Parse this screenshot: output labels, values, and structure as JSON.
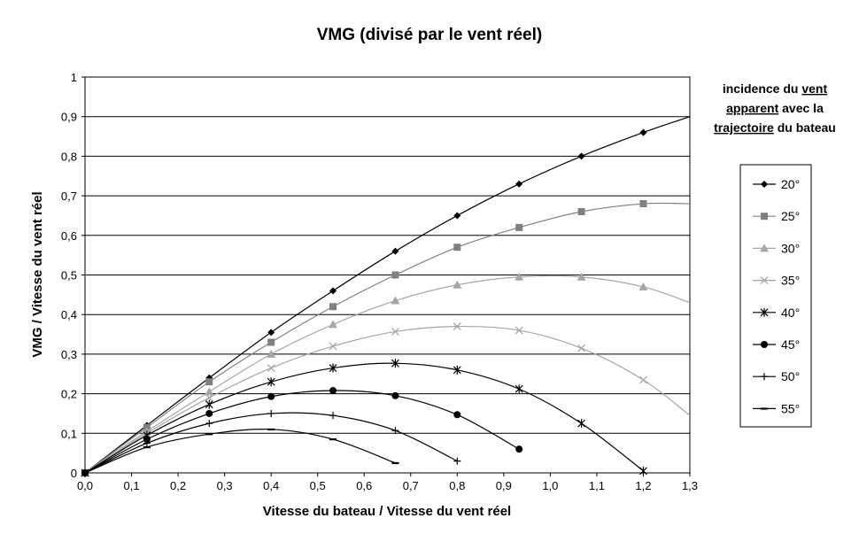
{
  "chart_data": {
    "type": "line",
    "title": "VMG (divisé par le vent réel)",
    "xlabel": "Vitesse du bateau / Vitesse du vent réel",
    "ylabel": "VMG / Vitesse du vent réel",
    "xlim": [
      0,
      1.3
    ],
    "ylim": [
      0,
      1
    ],
    "x_ticks": [
      "0,0",
      "0,1",
      "0,2",
      "0,3",
      "0,4",
      "0,5",
      "0,6",
      "0,7",
      "0,8",
      "0,9",
      "1,0",
      "1,1",
      "1,2",
      "1,3"
    ],
    "y_ticks": [
      "0",
      "0,1",
      "0,2",
      "0,3",
      "0,4",
      "0,5",
      "0,6",
      "0,7",
      "0,8",
      "0,9",
      "1"
    ],
    "grid": "horizontal",
    "legend_position": "right",
    "legend_title": {
      "line1_pre": "incidence du ",
      "line1_u": "vent ",
      "line2_u": "apparent",
      "line2_post": " avec la",
      "line3_u": "trajectoire",
      "line3_post": " du bateau"
    },
    "series": [
      {
        "name": "20°",
        "marker": "diamond",
        "color": "#000000",
        "points": [
          [
            0,
            0
          ],
          [
            0.133,
            0.12
          ],
          [
            0.267,
            0.24
          ],
          [
            0.4,
            0.355
          ],
          [
            0.533,
            0.46
          ],
          [
            0.667,
            0.56
          ],
          [
            0.8,
            0.65
          ],
          [
            0.933,
            0.73
          ],
          [
            1.067,
            0.8
          ],
          [
            1.2,
            0.86
          ]
        ],
        "curve": [
          [
            0,
            0
          ],
          [
            0.133,
            0.12
          ],
          [
            0.267,
            0.24
          ],
          [
            0.4,
            0.355
          ],
          [
            0.533,
            0.46
          ],
          [
            0.667,
            0.56
          ],
          [
            0.8,
            0.65
          ],
          [
            0.933,
            0.73
          ],
          [
            1.067,
            0.8
          ],
          [
            1.2,
            0.86
          ],
          [
            1.3,
            0.9
          ]
        ]
      },
      {
        "name": "25°",
        "marker": "square",
        "color": "#808080",
        "points": [
          [
            0,
            0
          ],
          [
            0.133,
            0.115
          ],
          [
            0.267,
            0.23
          ],
          [
            0.4,
            0.33
          ],
          [
            0.533,
            0.42
          ],
          [
            0.667,
            0.5
          ],
          [
            0.8,
            0.57
          ],
          [
            0.933,
            0.62
          ],
          [
            1.067,
            0.66
          ],
          [
            1.2,
            0.68
          ]
        ],
        "curve": [
          [
            0,
            0
          ],
          [
            0.133,
            0.115
          ],
          [
            0.267,
            0.23
          ],
          [
            0.4,
            0.33
          ],
          [
            0.533,
            0.42
          ],
          [
            0.667,
            0.5
          ],
          [
            0.8,
            0.57
          ],
          [
            0.933,
            0.62
          ],
          [
            1.067,
            0.66
          ],
          [
            1.2,
            0.68
          ],
          [
            1.3,
            0.68
          ]
        ]
      },
      {
        "name": "30°",
        "marker": "triangle",
        "color": "#a6a6a6",
        "points": [
          [
            0,
            0
          ],
          [
            0.133,
            0.105
          ],
          [
            0.267,
            0.205
          ],
          [
            0.4,
            0.3
          ],
          [
            0.533,
            0.375
          ],
          [
            0.667,
            0.435
          ],
          [
            0.8,
            0.475
          ],
          [
            0.933,
            0.495
          ],
          [
            1.067,
            0.495
          ],
          [
            1.2,
            0.47
          ]
        ],
        "curve": [
          [
            0,
            0
          ],
          [
            0.133,
            0.105
          ],
          [
            0.267,
            0.205
          ],
          [
            0.4,
            0.3
          ],
          [
            0.533,
            0.375
          ],
          [
            0.667,
            0.435
          ],
          [
            0.8,
            0.475
          ],
          [
            0.933,
            0.495
          ],
          [
            1.067,
            0.495
          ],
          [
            1.2,
            0.47
          ],
          [
            1.3,
            0.43
          ]
        ]
      },
      {
        "name": "35°",
        "marker": "x",
        "color": "#a6a6a6",
        "points": [
          [
            0,
            0
          ],
          [
            0.133,
            0.1
          ],
          [
            0.267,
            0.19
          ],
          [
            0.4,
            0.265
          ],
          [
            0.533,
            0.32
          ],
          [
            0.667,
            0.357
          ],
          [
            0.8,
            0.37
          ],
          [
            0.933,
            0.36
          ],
          [
            1.067,
            0.315
          ],
          [
            1.2,
            0.235
          ]
        ],
        "curve": [
          [
            0,
            0
          ],
          [
            0.133,
            0.1
          ],
          [
            0.267,
            0.19
          ],
          [
            0.4,
            0.265
          ],
          [
            0.533,
            0.32
          ],
          [
            0.667,
            0.357
          ],
          [
            0.8,
            0.37
          ],
          [
            0.933,
            0.36
          ],
          [
            1.067,
            0.315
          ],
          [
            1.2,
            0.235
          ],
          [
            1.3,
            0.145
          ]
        ]
      },
      {
        "name": "40°",
        "marker": "asterisk",
        "color": "#000000",
        "points": [
          [
            0,
            0
          ],
          [
            0.133,
            0.095
          ],
          [
            0.267,
            0.173
          ],
          [
            0.4,
            0.23
          ],
          [
            0.533,
            0.265
          ],
          [
            0.667,
            0.277
          ],
          [
            0.8,
            0.26
          ],
          [
            0.933,
            0.212
          ],
          [
            1.067,
            0.125
          ],
          [
            1.2,
            0.005
          ]
        ],
        "curve": [
          [
            0,
            0
          ],
          [
            0.133,
            0.095
          ],
          [
            0.267,
            0.173
          ],
          [
            0.4,
            0.23
          ],
          [
            0.533,
            0.265
          ],
          [
            0.667,
            0.277
          ],
          [
            0.8,
            0.26
          ],
          [
            0.933,
            0.212
          ],
          [
            1.067,
            0.125
          ],
          [
            1.2,
            0.005
          ]
        ]
      },
      {
        "name": "45°",
        "marker": "circle",
        "color": "#000000",
        "points": [
          [
            0,
            0
          ],
          [
            0.133,
            0.085
          ],
          [
            0.267,
            0.15
          ],
          [
            0.4,
            0.193
          ],
          [
            0.533,
            0.208
          ],
          [
            0.667,
            0.195
          ],
          [
            0.8,
            0.147
          ],
          [
            0.933,
            0.06
          ]
        ],
        "curve": [
          [
            0,
            0
          ],
          [
            0.133,
            0.085
          ],
          [
            0.267,
            0.15
          ],
          [
            0.4,
            0.193
          ],
          [
            0.533,
            0.208
          ],
          [
            0.667,
            0.195
          ],
          [
            0.8,
            0.147
          ],
          [
            0.933,
            0.06
          ]
        ]
      },
      {
        "name": "50°",
        "marker": "plus",
        "color": "#000000",
        "points": [
          [
            0,
            0
          ],
          [
            0.133,
            0.075
          ],
          [
            0.267,
            0.125
          ],
          [
            0.4,
            0.15
          ],
          [
            0.533,
            0.145
          ],
          [
            0.667,
            0.107
          ],
          [
            0.8,
            0.03
          ]
        ],
        "curve": [
          [
            0,
            0
          ],
          [
            0.133,
            0.075
          ],
          [
            0.267,
            0.125
          ],
          [
            0.4,
            0.15
          ],
          [
            0.533,
            0.145
          ],
          [
            0.667,
            0.107
          ],
          [
            0.8,
            0.03
          ]
        ]
      },
      {
        "name": "55°",
        "marker": "dash",
        "color": "#000000",
        "points": [
          [
            0,
            0
          ],
          [
            0.133,
            0.065
          ],
          [
            0.267,
            0.098
          ],
          [
            0.4,
            0.11
          ],
          [
            0.533,
            0.085
          ],
          [
            0.667,
            0.025
          ]
        ],
        "curve": [
          [
            0,
            0
          ],
          [
            0.133,
            0.065
          ],
          [
            0.267,
            0.098
          ],
          [
            0.4,
            0.11
          ],
          [
            0.533,
            0.085
          ],
          [
            0.667,
            0.025
          ]
        ]
      }
    ]
  }
}
